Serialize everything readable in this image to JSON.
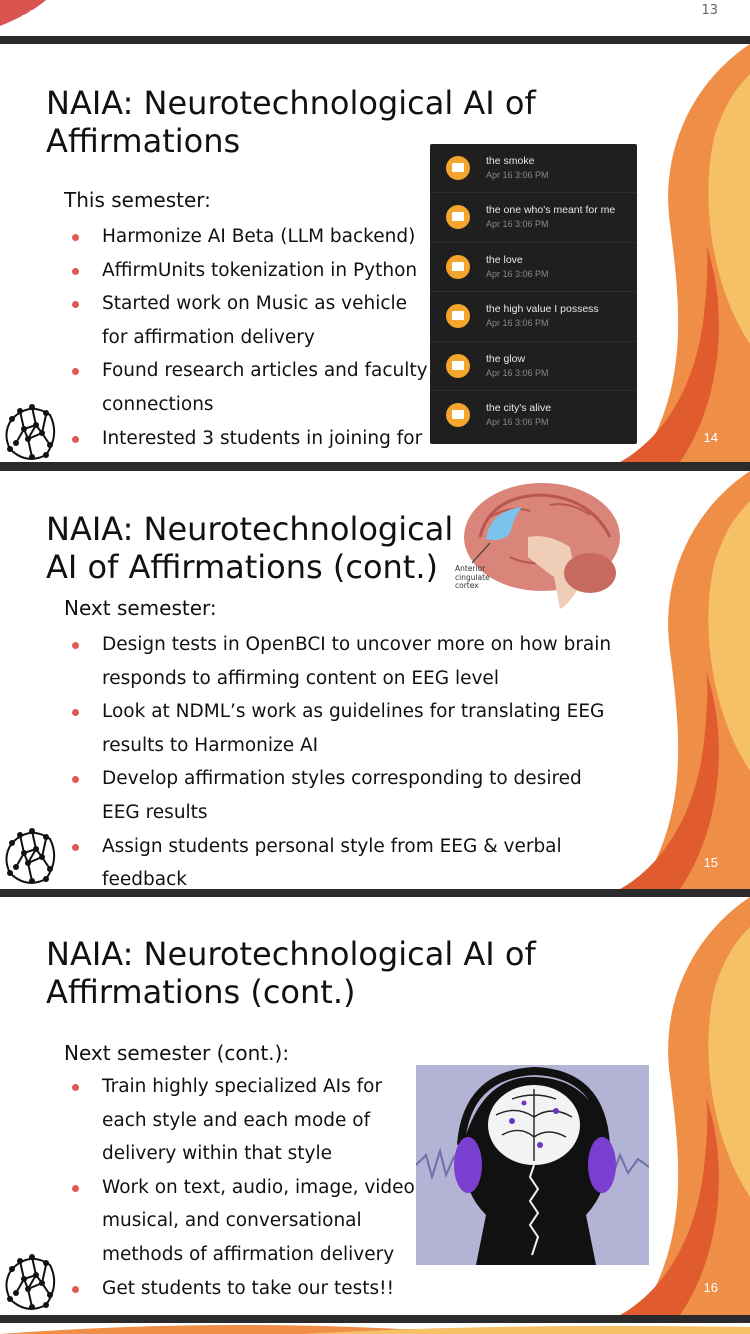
{
  "top_strip": {
    "page_number": "13"
  },
  "slides": [
    {
      "number": "14",
      "title_line1": "NAIA: Neurotechnological AI of",
      "title_line2": "Affirmations",
      "subtitle": "This semester:",
      "bullets": [
        "Harmonize AI Beta (LLM backend)",
        "AffirmUnits tokenization in Python",
        "Started work on Music as vehicle",
        "for affirmation delivery",
        "Found research articles and faculty",
        "connections",
        "Interested 3 students in joining for"
      ],
      "phone_list": [
        {
          "name": "the smoke",
          "date": "Apr 16 3:06 PM"
        },
        {
          "name": "the one who's meant for me",
          "date": "Apr 16 3:06 PM"
        },
        {
          "name": "the love",
          "date": "Apr 16 3:06 PM"
        },
        {
          "name": "the high value I possess",
          "date": "Apr 16 3:06 PM"
        },
        {
          "name": "the glow",
          "date": "Apr 16 3:06 PM"
        },
        {
          "name": "the city's alive",
          "date": "Apr 16 3:06 PM"
        }
      ]
    },
    {
      "number": "15",
      "title_line1": "NAIA: Neurotechnological",
      "title_line2": "AI of Affirmations (cont.)",
      "subtitle": "Next semester:",
      "brain_label_1": "Anterior",
      "brain_label_2": "cingulate",
      "brain_label_3": "cortex",
      "bullets": [
        "Design tests in OpenBCI to uncover more on how brain",
        "responds to affirming content on EEG level",
        "Look at NDML’s work as guidelines for translating EEG",
        "results to Harmonize AI",
        "Develop affirmation styles corresponding to desired",
        "EEG results",
        "Assign students personal style from EEG & verbal",
        "feedback"
      ]
    },
    {
      "number": "16",
      "title_line1": "NAIA: Neurotechnological AI of",
      "title_line2": "Affirmations (cont.)",
      "subtitle": "Next semester (cont.):",
      "bullets": [
        "Train highly specialized AIs for",
        "each style and each mode of",
        "delivery within that style",
        "Work on text, audio, image, video,",
        "musical,  and conversational",
        "methods of affirmation delivery",
        "Get students to take our tests!!"
      ]
    }
  ],
  "colors": {
    "orange_light": "#f6c065",
    "orange_mid": "#ef8e47",
    "orange_dark": "#e05c2e",
    "bullet": "#e05a4f"
  }
}
